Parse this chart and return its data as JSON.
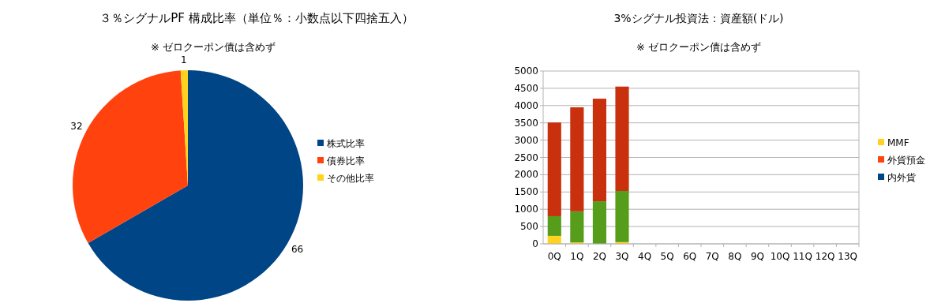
{
  "chart_data": [
    {
      "type": "pie",
      "title": "３％シグナルPF 構成比率（単位％：小数点以下四捨五入）",
      "subtitle": "※ ゼロクーポン債は含めず",
      "categories": [
        "株式比率",
        "債券比率",
        "その他比率"
      ],
      "values": [
        66,
        32,
        1
      ],
      "colors": [
        "#004586",
        "#ff420e",
        "#ffd320"
      ],
      "data_labels": true,
      "legend": "right"
    },
    {
      "type": "bar",
      "stacked": true,
      "title": "3%シグナル投資法：資産額(ドル)",
      "subtitle": "※ ゼロクーポン債は含めず",
      "categories": [
        "0Q",
        "1Q",
        "2Q",
        "3Q",
        "4Q",
        "5Q",
        "6Q",
        "7Q",
        "8Q",
        "9Q",
        "10Q",
        "11Q",
        "12Q",
        "13Q"
      ],
      "series": [
        {
          "name": "内外貨",
          "color": "#004586",
          "values": [
            0,
            0,
            0,
            0,
            null,
            null,
            null,
            null,
            null,
            null,
            null,
            null,
            null,
            null
          ]
        },
        {
          "name": "外貨預金",
          "color": "#ff420e",
          "values": [
            0,
            0,
            0,
            0,
            null,
            null,
            null,
            null,
            null,
            null,
            null,
            null,
            null,
            null
          ]
        },
        {
          "name": "MMF",
          "color": "#ffd320",
          "values": [
            230,
            40,
            0,
            50,
            null,
            null,
            null,
            null,
            null,
            null,
            null,
            null,
            null,
            null
          ]
        },
        {
          "color": "#579d1c",
          "values": [
            570,
            900,
            1230,
            1480,
            null,
            null,
            null,
            null,
            null,
            null,
            null,
            null,
            null,
            null
          ]
        },
        {
          "color": "#c9300e",
          "values": [
            2710,
            3010,
            2970,
            3020,
            null,
            null,
            null,
            null,
            null,
            null,
            null,
            null,
            null,
            null
          ]
        }
      ],
      "ylim": [
        0,
        5000
      ],
      "yticks": [
        0,
        500,
        1000,
        1500,
        2000,
        2500,
        3000,
        3500,
        4000,
        4500,
        5000
      ],
      "grid": "y",
      "legend": "right"
    }
  ]
}
